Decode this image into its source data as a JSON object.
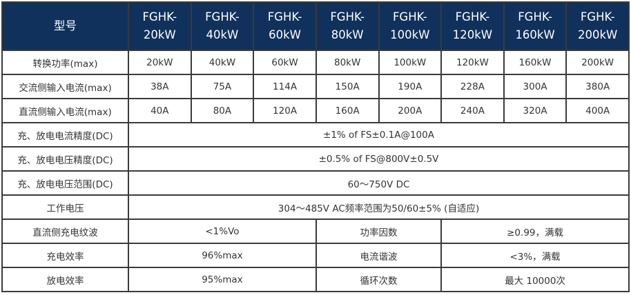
{
  "header": {
    "label": "型号",
    "models": [
      "FGHK-\n20kW",
      "FGHK-\n40kW",
      "FGHK-\n60kW",
      "FGHK-\n80kW",
      "FGHK-\n100kW",
      "FGHK-\n120kW",
      "FGHK-\n160kW",
      "FGHK-\n200kW"
    ]
  },
  "per_model_rows": [
    {
      "label": "转换功率(max)",
      "values": [
        "20kW",
        "40kW",
        "60kW",
        "80kW",
        "100kW",
        "120kW",
        "160kW",
        "200kW"
      ]
    },
    {
      "label": "交流侧输入电流(max)",
      "values": [
        "38A",
        "75A",
        "114A",
        "150A",
        "190A",
        "228A",
        "300A",
        "380A"
      ]
    },
    {
      "label": "直流侧输入电流(max)",
      "values": [
        "40A",
        "80A",
        "120A",
        "160A",
        "200A",
        "240A",
        "320A",
        "400A"
      ]
    }
  ],
  "span_rows": [
    {
      "label": "充、放电电流精度(DC)",
      "value": "±1% of FS±0.1A@100A"
    },
    {
      "label": "充、放电电压精度(DC)",
      "value": "±0.5% of FS@800V±0.5V"
    },
    {
      "label": "充、放电电压范围(DC)",
      "value": "60～750V  DC"
    },
    {
      "label": "工作电压",
      "value": "304～485V   AC频率范围为50/60±5%   (自适应)"
    }
  ],
  "pair_rows": [
    {
      "label1": "直流侧充电纹波",
      "value1": "<1%Vo",
      "label2": "功率因数",
      "value2": "≥0.99，满载"
    },
    {
      "label1": "充电效率",
      "value1": "96%max",
      "label2": "电流谐波",
      "value2": "<3%，满载"
    },
    {
      "label1": "放电效率",
      "value1": "95%max",
      "label2": "循环次数",
      "value2": "最大 10000次"
    }
  ],
  "colors": {
    "header_bg": "#10315c",
    "header_text": "#ffffff",
    "border": "#3a3a3a"
  }
}
